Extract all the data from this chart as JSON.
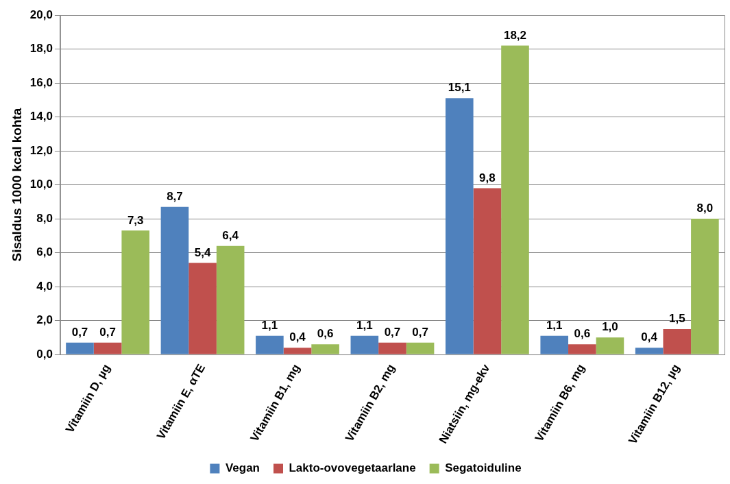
{
  "chart_data": {
    "type": "bar",
    "ylabel": "Sisaldus 1000 kcal kohta",
    "categories": [
      "Vitamiin D, µg",
      "Vitamiin E, αTE",
      "Vitamiin B1, mg",
      "Vitamiin B2, mg",
      "Niatsiin, mg-ekv",
      "Vitamiin B6, mg",
      "Vitamiin B12, µg"
    ],
    "series": [
      {
        "name": "Vegan",
        "color": "#4f81bd",
        "values": [
          0.7,
          8.7,
          1.1,
          1.1,
          15.1,
          1.1,
          0.4
        ],
        "value_labels": [
          "0,7",
          "8,7",
          "1,1",
          "1,1",
          "15,1",
          "1,1",
          "0,4"
        ]
      },
      {
        "name": "Lakto-ovovegetaarlane",
        "color": "#c0504d",
        "values": [
          0.7,
          5.4,
          0.4,
          0.7,
          9.8,
          0.6,
          1.5
        ],
        "value_labels": [
          "0,7",
          "5,4",
          "0,4",
          "0,7",
          "9,8",
          "0,6",
          "1,5"
        ]
      },
      {
        "name": "Segatoiduline",
        "color": "#9bbb59",
        "values": [
          7.3,
          6.4,
          0.6,
          0.7,
          18.2,
          1.0,
          8.0
        ],
        "value_labels": [
          "7,3",
          "6,4",
          "0,6",
          "0,7",
          "18,2",
          "1,0",
          "8,0"
        ]
      }
    ],
    "ylim": [
      0,
      20
    ],
    "yticks": [
      {
        "value": 0,
        "label": "0,0"
      },
      {
        "value": 2,
        "label": "2,0"
      },
      {
        "value": 4,
        "label": "4,0"
      },
      {
        "value": 6,
        "label": "6,0"
      },
      {
        "value": 8,
        "label": "8,0"
      },
      {
        "value": 10,
        "label": "10,0"
      },
      {
        "value": 12,
        "label": "12,0"
      },
      {
        "value": 14,
        "label": "14,0"
      },
      {
        "value": 16,
        "label": "16,0"
      },
      {
        "value": 18,
        "label": "18,0"
      },
      {
        "value": 20,
        "label": "20,0"
      }
    ],
    "grid": "y",
    "legend": "bottom"
  }
}
